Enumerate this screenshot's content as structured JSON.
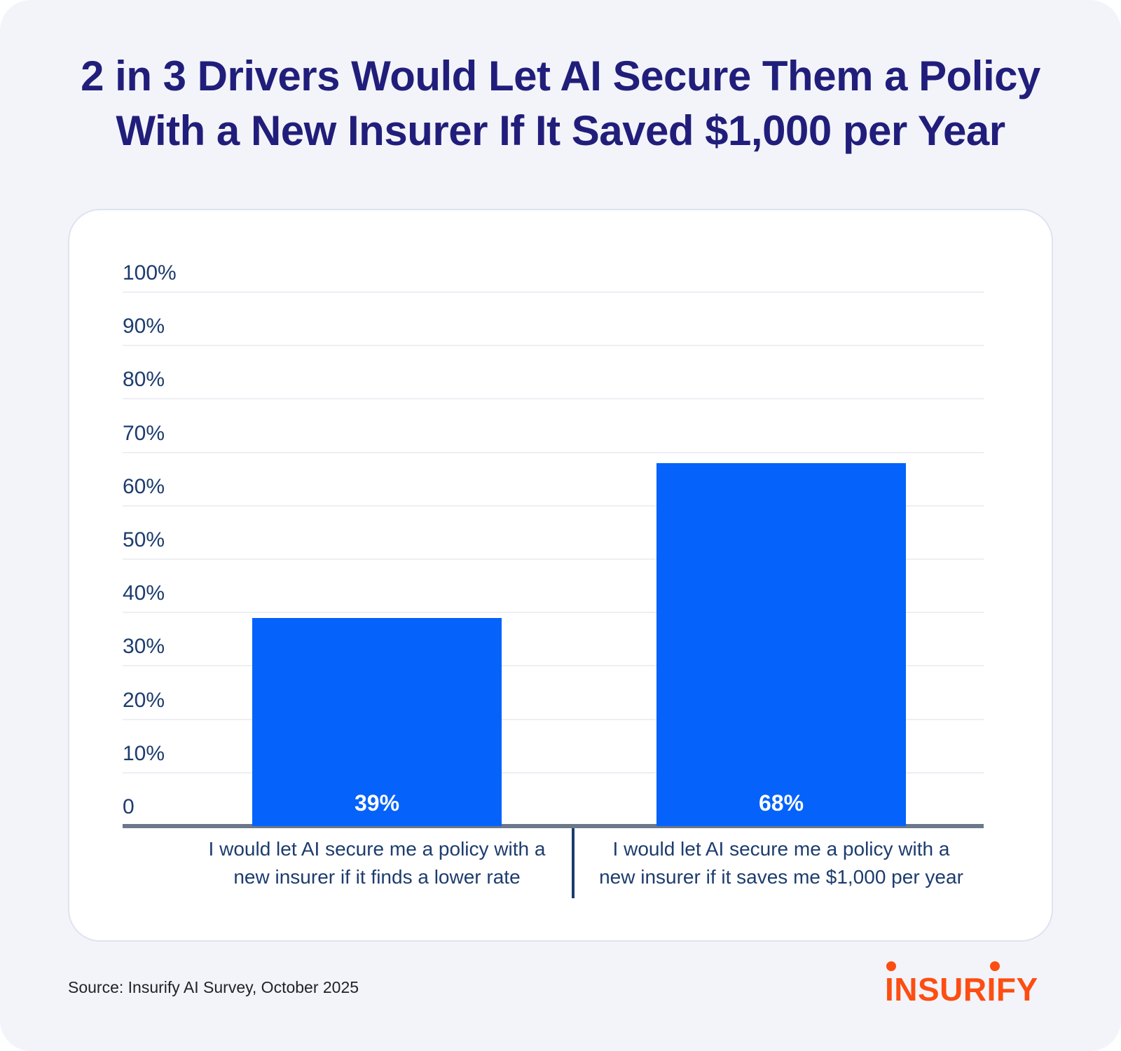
{
  "title": {
    "line1": "2 in 3 Drivers Would Let AI Secure Them a Policy",
    "line2": "With a New Insurer If It Saved $1,000 per Year"
  },
  "chart_data": {
    "type": "bar",
    "title": "",
    "xlabel": "",
    "ylabel": "",
    "ylim": [
      0,
      100
    ],
    "grid": true,
    "categories": [
      "I would let AI secure me a policy with a new insurer if it finds a lower rate",
      "I would let AI secure me a policy with a new insurer if it saves me $1,000 per year"
    ],
    "category_lines": [
      [
        "I would let AI secure me a policy with a",
        "new insurer if it finds a lower rate"
      ],
      [
        "I would let AI secure me a policy with a",
        "new insurer if it saves me $1,000 per year"
      ]
    ],
    "values": [
      39,
      68
    ],
    "value_labels": [
      "39%",
      "68%"
    ],
    "y_ticks": [
      {
        "label": "100%",
        "value": 100
      },
      {
        "label": "90%",
        "value": 90
      },
      {
        "label": "80%",
        "value": 80
      },
      {
        "label": "70%",
        "value": 70
      },
      {
        "label": "60%",
        "value": 60
      },
      {
        "label": "50%",
        "value": 50
      },
      {
        "label": "40%",
        "value": 40
      },
      {
        "label": "30%",
        "value": 30
      },
      {
        "label": "20%",
        "value": 20
      },
      {
        "label": "10%",
        "value": 10
      },
      {
        "label": "0",
        "value": 0
      }
    ],
    "bar_color": "#0562FA",
    "value_label_color": "#FFFFFF"
  },
  "footer": {
    "source": "Source: Insurify AI Survey, October 2025",
    "logo_text": "INSURIFY",
    "logo_color": "#FC4E12"
  },
  "colors": {
    "page_bg": "#F3F4F9",
    "card_bg": "#FFFFFF",
    "card_border": "#DDE3EF",
    "title_indigo": "#211E7B",
    "navy": "#1D3C6E",
    "accent_blue": "#0562FA",
    "axis_gray": "#6B7889",
    "gridline": "#EDEFF4",
    "logo_orange": "#FC4E12",
    "source_text": "#222229"
  }
}
